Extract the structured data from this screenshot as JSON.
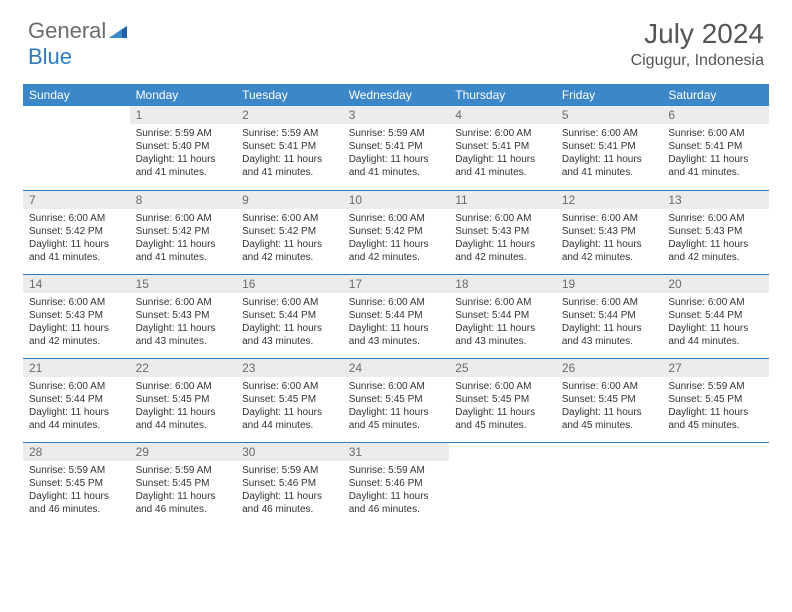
{
  "logo": {
    "text1": "General",
    "text2": "Blue"
  },
  "title": "July 2024",
  "location": "Cigugur, Indonesia",
  "colors": {
    "header_bg": "#3b87c8",
    "header_text": "#ffffff",
    "daynum_bg": "#ececec",
    "daynum_text": "#6b6b6b",
    "rule": "#2f7abf",
    "body_text": "#333333",
    "logo_gray": "#6b6b6b",
    "logo_blue": "#2f7abf"
  },
  "weekdays": [
    "Sunday",
    "Monday",
    "Tuesday",
    "Wednesday",
    "Thursday",
    "Friday",
    "Saturday"
  ],
  "weeks": [
    [
      {
        "n": "",
        "lines": []
      },
      {
        "n": "1",
        "lines": [
          "Sunrise: 5:59 AM",
          "Sunset: 5:40 PM",
          "Daylight: 11 hours and 41 minutes."
        ]
      },
      {
        "n": "2",
        "lines": [
          "Sunrise: 5:59 AM",
          "Sunset: 5:41 PM",
          "Daylight: 11 hours and 41 minutes."
        ]
      },
      {
        "n": "3",
        "lines": [
          "Sunrise: 5:59 AM",
          "Sunset: 5:41 PM",
          "Daylight: 11 hours and 41 minutes."
        ]
      },
      {
        "n": "4",
        "lines": [
          "Sunrise: 6:00 AM",
          "Sunset: 5:41 PM",
          "Daylight: 11 hours and 41 minutes."
        ]
      },
      {
        "n": "5",
        "lines": [
          "Sunrise: 6:00 AM",
          "Sunset: 5:41 PM",
          "Daylight: 11 hours and 41 minutes."
        ]
      },
      {
        "n": "6",
        "lines": [
          "Sunrise: 6:00 AM",
          "Sunset: 5:41 PM",
          "Daylight: 11 hours and 41 minutes."
        ]
      }
    ],
    [
      {
        "n": "7",
        "lines": [
          "Sunrise: 6:00 AM",
          "Sunset: 5:42 PM",
          "Daylight: 11 hours and 41 minutes."
        ]
      },
      {
        "n": "8",
        "lines": [
          "Sunrise: 6:00 AM",
          "Sunset: 5:42 PM",
          "Daylight: 11 hours and 41 minutes."
        ]
      },
      {
        "n": "9",
        "lines": [
          "Sunrise: 6:00 AM",
          "Sunset: 5:42 PM",
          "Daylight: 11 hours and 42 minutes."
        ]
      },
      {
        "n": "10",
        "lines": [
          "Sunrise: 6:00 AM",
          "Sunset: 5:42 PM",
          "Daylight: 11 hours and 42 minutes."
        ]
      },
      {
        "n": "11",
        "lines": [
          "Sunrise: 6:00 AM",
          "Sunset: 5:43 PM",
          "Daylight: 11 hours and 42 minutes."
        ]
      },
      {
        "n": "12",
        "lines": [
          "Sunrise: 6:00 AM",
          "Sunset: 5:43 PM",
          "Daylight: 11 hours and 42 minutes."
        ]
      },
      {
        "n": "13",
        "lines": [
          "Sunrise: 6:00 AM",
          "Sunset: 5:43 PM",
          "Daylight: 11 hours and 42 minutes."
        ]
      }
    ],
    [
      {
        "n": "14",
        "lines": [
          "Sunrise: 6:00 AM",
          "Sunset: 5:43 PM",
          "Daylight: 11 hours and 42 minutes."
        ]
      },
      {
        "n": "15",
        "lines": [
          "Sunrise: 6:00 AM",
          "Sunset: 5:43 PM",
          "Daylight: 11 hours and 43 minutes."
        ]
      },
      {
        "n": "16",
        "lines": [
          "Sunrise: 6:00 AM",
          "Sunset: 5:44 PM",
          "Daylight: 11 hours and 43 minutes."
        ]
      },
      {
        "n": "17",
        "lines": [
          "Sunrise: 6:00 AM",
          "Sunset: 5:44 PM",
          "Daylight: 11 hours and 43 minutes."
        ]
      },
      {
        "n": "18",
        "lines": [
          "Sunrise: 6:00 AM",
          "Sunset: 5:44 PM",
          "Daylight: 11 hours and 43 minutes."
        ]
      },
      {
        "n": "19",
        "lines": [
          "Sunrise: 6:00 AM",
          "Sunset: 5:44 PM",
          "Daylight: 11 hours and 43 minutes."
        ]
      },
      {
        "n": "20",
        "lines": [
          "Sunrise: 6:00 AM",
          "Sunset: 5:44 PM",
          "Daylight: 11 hours and 44 minutes."
        ]
      }
    ],
    [
      {
        "n": "21",
        "lines": [
          "Sunrise: 6:00 AM",
          "Sunset: 5:44 PM",
          "Daylight: 11 hours and 44 minutes."
        ]
      },
      {
        "n": "22",
        "lines": [
          "Sunrise: 6:00 AM",
          "Sunset: 5:45 PM",
          "Daylight: 11 hours and 44 minutes."
        ]
      },
      {
        "n": "23",
        "lines": [
          "Sunrise: 6:00 AM",
          "Sunset: 5:45 PM",
          "Daylight: 11 hours and 44 minutes."
        ]
      },
      {
        "n": "24",
        "lines": [
          "Sunrise: 6:00 AM",
          "Sunset: 5:45 PM",
          "Daylight: 11 hours and 45 minutes."
        ]
      },
      {
        "n": "25",
        "lines": [
          "Sunrise: 6:00 AM",
          "Sunset: 5:45 PM",
          "Daylight: 11 hours and 45 minutes."
        ]
      },
      {
        "n": "26",
        "lines": [
          "Sunrise: 6:00 AM",
          "Sunset: 5:45 PM",
          "Daylight: 11 hours and 45 minutes."
        ]
      },
      {
        "n": "27",
        "lines": [
          "Sunrise: 5:59 AM",
          "Sunset: 5:45 PM",
          "Daylight: 11 hours and 45 minutes."
        ]
      }
    ],
    [
      {
        "n": "28",
        "lines": [
          "Sunrise: 5:59 AM",
          "Sunset: 5:45 PM",
          "Daylight: 11 hours and 46 minutes."
        ]
      },
      {
        "n": "29",
        "lines": [
          "Sunrise: 5:59 AM",
          "Sunset: 5:45 PM",
          "Daylight: 11 hours and 46 minutes."
        ]
      },
      {
        "n": "30",
        "lines": [
          "Sunrise: 5:59 AM",
          "Sunset: 5:46 PM",
          "Daylight: 11 hours and 46 minutes."
        ]
      },
      {
        "n": "31",
        "lines": [
          "Sunrise: 5:59 AM",
          "Sunset: 5:46 PM",
          "Daylight: 11 hours and 46 minutes."
        ]
      },
      {
        "n": "",
        "lines": []
      },
      {
        "n": "",
        "lines": []
      },
      {
        "n": "",
        "lines": []
      }
    ]
  ]
}
